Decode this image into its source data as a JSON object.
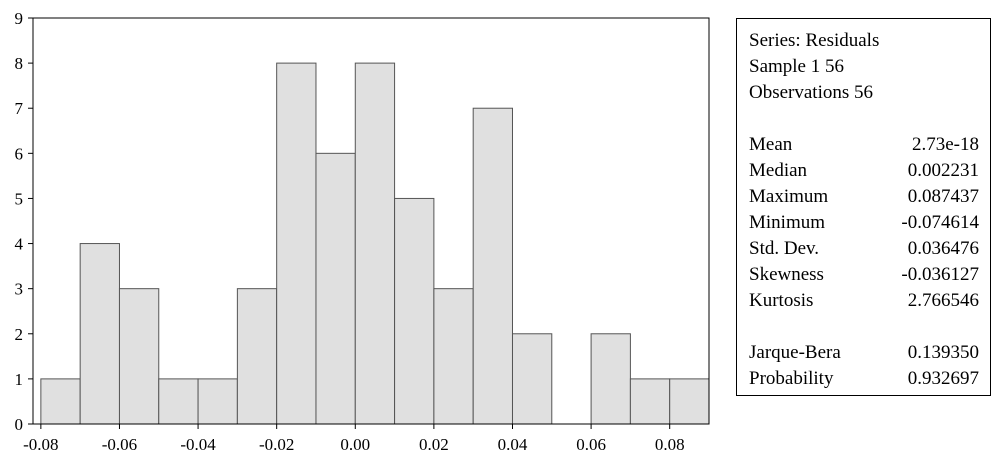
{
  "chart_data": {
    "type": "bar",
    "title": "",
    "xlabel": "",
    "ylabel": "",
    "bins": [
      {
        "from": -0.08,
        "to": -0.07,
        "count": 1
      },
      {
        "from": -0.07,
        "to": -0.06,
        "count": 4
      },
      {
        "from": -0.06,
        "to": -0.05,
        "count": 3
      },
      {
        "from": -0.05,
        "to": -0.04,
        "count": 1
      },
      {
        "from": -0.04,
        "to": -0.03,
        "count": 1
      },
      {
        "from": -0.03,
        "to": -0.02,
        "count": 3
      },
      {
        "from": -0.02,
        "to": -0.01,
        "count": 8
      },
      {
        "from": -0.01,
        "to": 0.0,
        "count": 6
      },
      {
        "from": 0.0,
        "to": 0.01,
        "count": 8
      },
      {
        "from": 0.01,
        "to": 0.02,
        "count": 5
      },
      {
        "from": 0.02,
        "to": 0.03,
        "count": 3
      },
      {
        "from": 0.03,
        "to": 0.04,
        "count": 7
      },
      {
        "from": 0.04,
        "to": 0.05,
        "count": 2
      },
      {
        "from": 0.05,
        "to": 0.06,
        "count": 0
      },
      {
        "from": 0.06,
        "to": 0.07,
        "count": 2
      },
      {
        "from": 0.07,
        "to": 0.08,
        "count": 1
      },
      {
        "from": 0.08,
        "to": 0.09,
        "count": 1
      }
    ],
    "xlim": [
      -0.082,
      0.09
    ],
    "ylim": [
      0,
      9
    ],
    "xticks": [
      "-0.08",
      "-0.06",
      "-0.04",
      "-0.02",
      "0.00",
      "0.02",
      "0.04",
      "0.06",
      "0.08"
    ],
    "xtick_values": [
      -0.08,
      -0.06,
      -0.04,
      -0.02,
      0.0,
      0.02,
      0.04,
      0.06,
      0.08
    ],
    "yticks": [
      "0",
      "1",
      "2",
      "3",
      "4",
      "5",
      "6",
      "7",
      "8",
      "9"
    ],
    "ytick_values": [
      0,
      1,
      2,
      3,
      4,
      5,
      6,
      7,
      8,
      9
    ],
    "grid": false,
    "bar_color": "#e0e0e0",
    "edge_color": "#555555"
  },
  "stats": {
    "series": "Series: Residuals",
    "sample": "Sample 1 56",
    "observations": "Observations 56",
    "rows": [
      {
        "label": "Mean",
        "value": "2.73e-18"
      },
      {
        "label": "Median",
        "value": "0.002231"
      },
      {
        "label": "Maximum",
        "value": "0.087437"
      },
      {
        "label": "Minimum",
        "value": "-0.074614"
      },
      {
        "label": "Std. Dev.",
        "value": "0.036476"
      },
      {
        "label": "Skewness",
        "value": "-0.036127"
      },
      {
        "label": "Kurtosis",
        "value": "2.766546"
      }
    ],
    "tests": [
      {
        "label": "Jarque-Bera",
        "value": "0.139350"
      },
      {
        "label": "Probability",
        "value": "0.932697"
      }
    ]
  }
}
